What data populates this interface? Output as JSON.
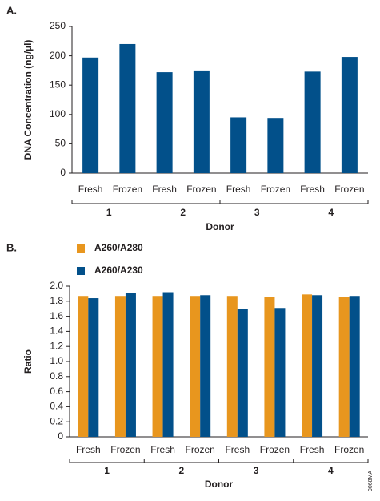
{
  "chart_data": [
    {
      "type": "bar",
      "panel_label": "A.",
      "y_label": "DNA Concentration (ng/µl)",
      "x_label": "Donor",
      "categories": [
        "Fresh",
        "Frozen",
        "Fresh",
        "Frozen",
        "Fresh",
        "Frozen",
        "Fresh",
        "Frozen"
      ],
      "groups": [
        "1",
        "2",
        "3",
        "4"
      ],
      "values": [
        197,
        220,
        172,
        175,
        95,
        94,
        173,
        198
      ],
      "color": "#02508a",
      "ylim": [
        0,
        250
      ],
      "yticks": [
        0,
        50,
        100,
        150,
        200,
        250
      ]
    },
    {
      "type": "grouped_bar",
      "panel_label": "B.",
      "y_label": "Ratio",
      "x_label": "Donor",
      "categories": [
        "Fresh",
        "Frozen",
        "Fresh",
        "Frozen",
        "Fresh",
        "Frozen",
        "Fresh",
        "Frozen"
      ],
      "groups": [
        "1",
        "2",
        "3",
        "4"
      ],
      "series": [
        {
          "name": "A260/A280",
          "color": "#e8961e",
          "values": [
            1.87,
            1.87,
            1.87,
            1.87,
            1.87,
            1.86,
            1.89,
            1.86
          ]
        },
        {
          "name": "A260/A230",
          "color": "#02508a",
          "values": [
            1.84,
            1.91,
            1.92,
            1.88,
            1.7,
            1.71,
            1.88,
            1.87
          ]
        }
      ],
      "ylim": [
        0,
        2.0
      ],
      "yticks": [
        0,
        0.2,
        0.4,
        0.6,
        0.8,
        {
          "value": 1.0,
          "label": "1.0"
        },
        1.2,
        1.4,
        1.6,
        1.8,
        {
          "value": 2.0,
          "label": "2.0"
        }
      ]
    }
  ],
  "figure_code": "9068MA"
}
